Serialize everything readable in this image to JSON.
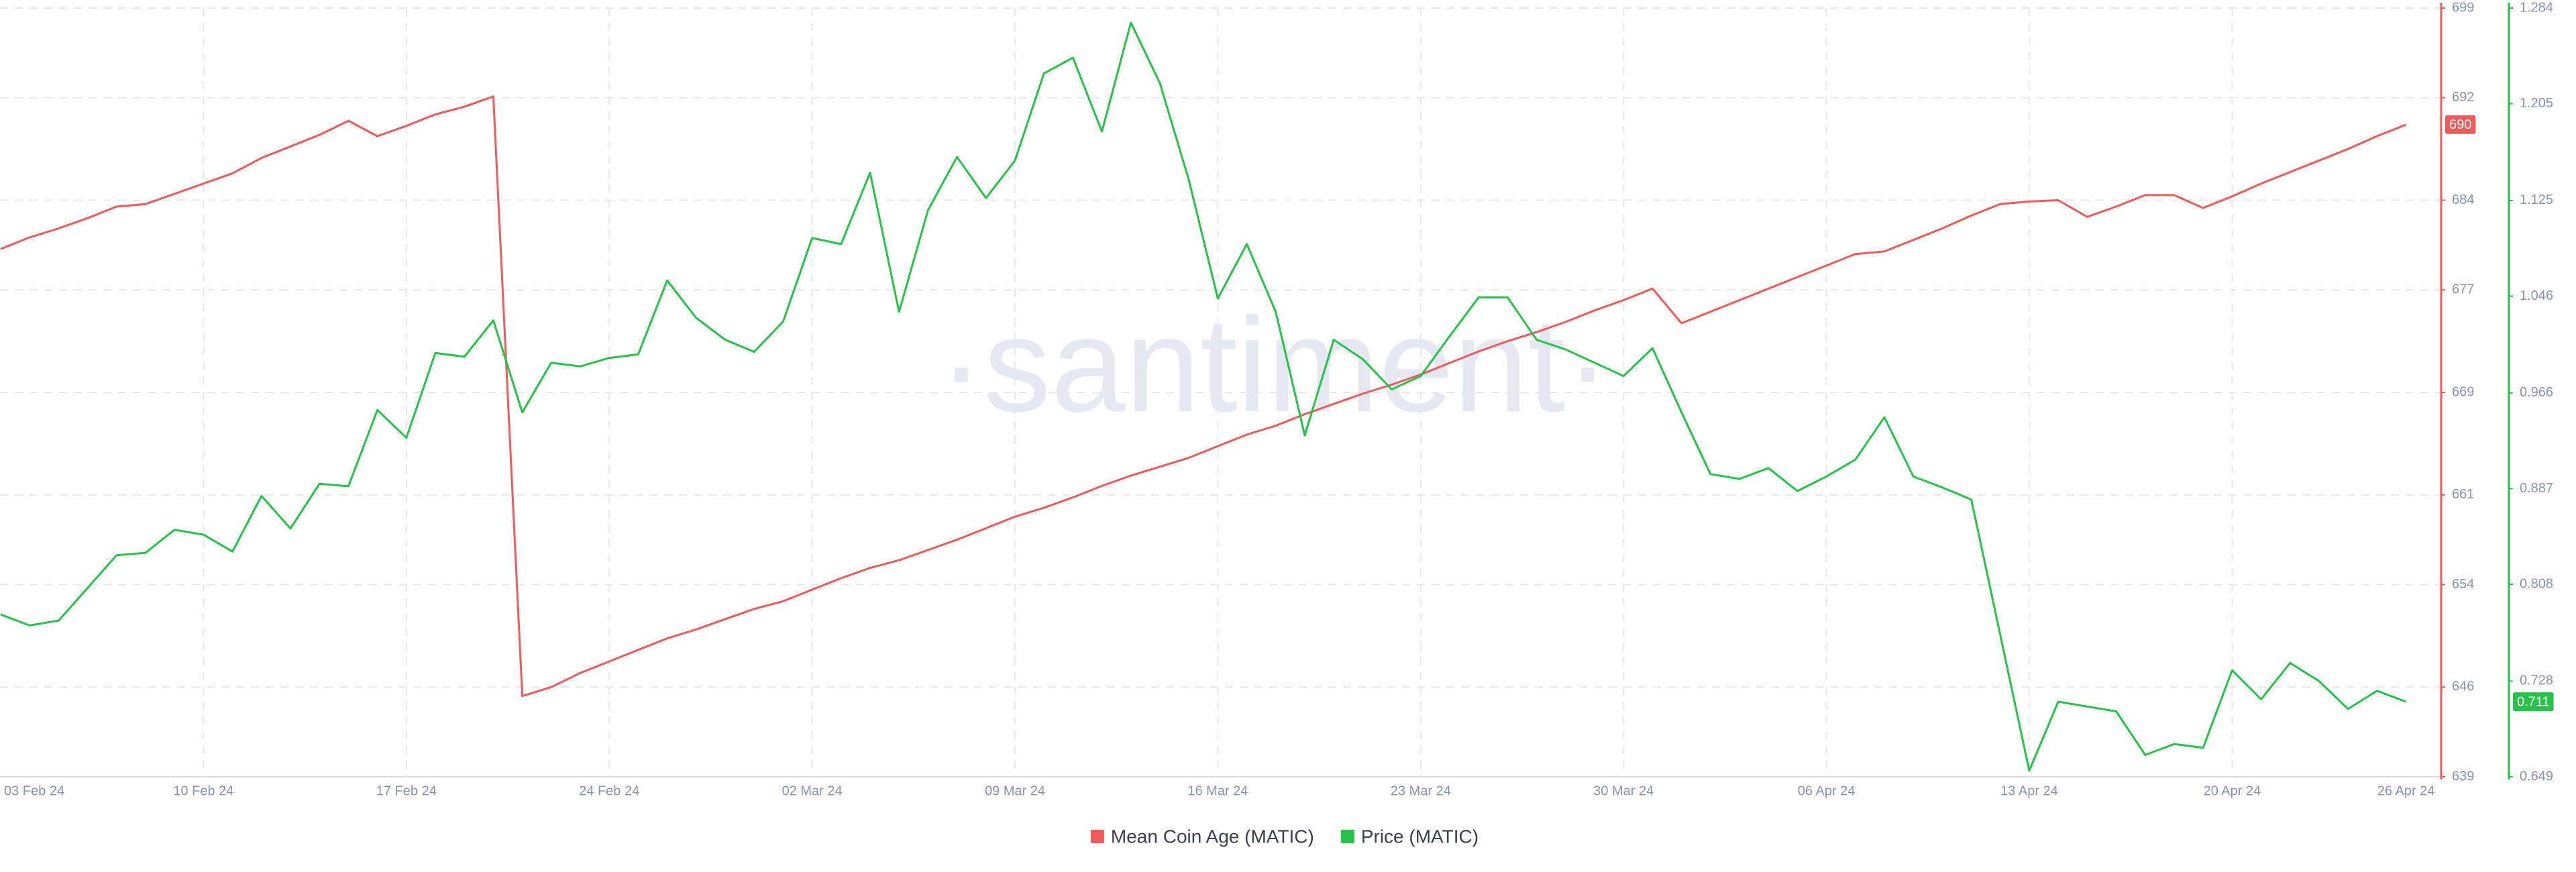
{
  "chart_data": {
    "type": "line",
    "watermark": "·santiment·",
    "categories": [
      "03 Feb 24",
      null,
      null,
      null,
      null,
      null,
      null,
      "10 Feb 24",
      null,
      null,
      null,
      null,
      null,
      null,
      "17 Feb 24",
      null,
      null,
      null,
      null,
      null,
      null,
      "24 Feb 24",
      null,
      null,
      null,
      null,
      null,
      null,
      "02 Mar 24",
      null,
      null,
      null,
      null,
      null,
      null,
      "09 Mar 24",
      null,
      null,
      null,
      null,
      null,
      null,
      "16 Mar 24",
      null,
      null,
      null,
      null,
      null,
      null,
      "23 Mar 24",
      null,
      null,
      null,
      null,
      null,
      null,
      "30 Mar 24",
      null,
      null,
      null,
      null,
      null,
      null,
      "06 Apr 24",
      null,
      null,
      null,
      null,
      null,
      null,
      "13 Apr 24",
      null,
      null,
      null,
      null,
      null,
      null,
      "20 Apr 24",
      null,
      null,
      null,
      null,
      null,
      "26 Apr 24"
    ],
    "series": [
      {
        "name": "Mean Coin Age (MATIC)",
        "color": "#f05a5a",
        "axis": "y",
        "values": [
          680.2,
          681.1,
          681.8,
          682.6,
          683.5,
          683.7,
          684.5,
          685.3,
          686.1,
          687.3,
          688.2,
          689.1,
          690.2,
          689.0,
          689.8,
          690.7,
          691.3,
          692.1,
          645.3,
          646.0,
          647.1,
          648.0,
          648.9,
          649.8,
          650.5,
          651.3,
          652.1,
          652.7,
          653.6,
          654.5,
          655.3,
          655.9,
          656.7,
          657.5,
          658.4,
          659.3,
          660.0,
          660.8,
          661.7,
          662.5,
          663.2,
          663.9,
          664.8,
          665.7,
          666.4,
          667.3,
          668.1,
          668.9,
          669.6,
          670.4,
          671.3,
          672.2,
          673.0,
          673.7,
          674.5,
          675.4,
          676.2,
          677.1,
          674.4,
          675.3,
          676.2,
          677.1,
          678.0,
          678.9,
          679.8,
          680.0,
          680.9,
          681.8,
          682.8,
          683.7,
          683.9,
          684.0,
          682.7,
          683.5,
          684.4,
          684.4,
          683.4,
          684.3,
          685.3,
          686.2,
          687.1,
          688.0,
          689.0,
          689.9
        ],
        "value_labels": [
          null,
          null,
          null,
          null,
          null,
          null,
          null,
          null,
          null,
          null,
          null,
          null,
          null,
          null,
          null,
          null,
          null,
          null,
          null,
          null,
          null,
          null,
          null,
          null,
          null,
          null,
          null,
          null,
          null,
          null,
          null,
          null,
          null,
          null,
          null,
          null,
          null,
          null,
          null,
          null,
          null,
          null,
          null,
          null,
          null,
          null,
          null,
          null,
          null,
          null,
          null,
          null,
          null,
          null,
          null,
          null,
          null,
          null,
          null,
          null,
          null,
          null,
          null,
          null,
          null,
          null,
          null,
          null,
          null,
          null,
          null,
          null,
          null,
          null,
          null,
          null,
          null,
          null,
          null,
          null,
          null,
          null,
          null,
          "690"
        ]
      },
      {
        "name": "Price (MATIC)",
        "color": "#26c24a",
        "axis": "y2",
        "values": [
          0.783,
          0.774,
          0.778,
          0.805,
          0.832,
          0.834,
          0.853,
          0.849,
          0.835,
          0.881,
          0.854,
          0.891,
          0.889,
          0.952,
          0.929,
          0.999,
          0.996,
          1.026,
          0.95,
          0.991,
          0.988,
          0.995,
          0.998,
          1.059,
          1.028,
          1.01,
          1.0,
          1.025,
          1.094,
          1.089,
          1.148,
          1.033,
          1.117,
          1.161,
          1.127,
          1.158,
          1.23,
          1.243,
          1.182,
          1.272,
          1.222,
          1.142,
          1.044,
          1.089,
          1.033,
          0.931,
          1.01,
          0.994,
          0.969,
          0.98,
          1.013,
          1.045,
          1.045,
          1.01,
          1.002,
          0.991,
          0.98,
          1.003,
          0.95,
          0.899,
          0.895,
          0.904,
          0.885,
          0.897,
          0.911,
          0.946,
          0.897,
          0.888,
          0.878,
          0.766,
          0.654,
          0.711,
          0.707,
          0.703,
          0.667,
          0.676,
          0.673,
          0.737,
          0.713,
          0.743,
          0.728,
          0.705,
          0.72,
          0.711
        ],
        "value_labels": [
          null,
          null,
          null,
          null,
          null,
          null,
          null,
          null,
          null,
          null,
          null,
          null,
          null,
          null,
          null,
          null,
          null,
          null,
          null,
          null,
          null,
          null,
          null,
          null,
          null,
          null,
          null,
          null,
          null,
          null,
          null,
          null,
          null,
          null,
          null,
          null,
          null,
          null,
          null,
          null,
          null,
          null,
          null,
          null,
          null,
          null,
          null,
          null,
          null,
          null,
          null,
          null,
          null,
          null,
          null,
          null,
          null,
          null,
          null,
          null,
          null,
          null,
          null,
          null,
          null,
          null,
          null,
          null,
          null,
          null,
          null,
          null,
          null,
          null,
          null,
          null,
          null,
          null,
          null,
          null,
          null,
          null,
          null,
          "0.711"
        ]
      }
    ],
    "ylim": [
      639,
      699
    ],
    "yticks": [
      639,
      646,
      654,
      661,
      669,
      677,
      684,
      692,
      699
    ],
    "y2lim": [
      0.649,
      1.284
    ],
    "y2ticks": [
      0.649,
      0.728,
      0.808,
      0.887,
      0.966,
      1.046,
      1.125,
      1.205,
      1.284
    ],
    "grid": true,
    "legend": "bottom"
  }
}
